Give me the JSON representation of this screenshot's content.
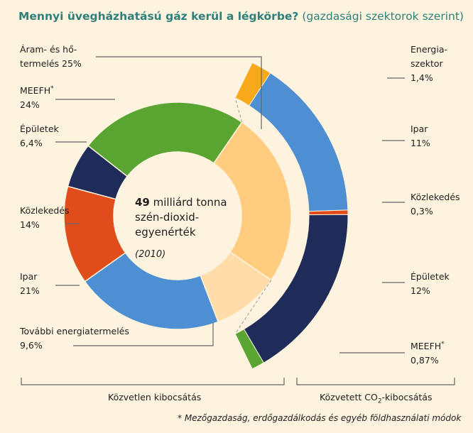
{
  "title": {
    "main": "Mennyi üvegházhatású gáz kerül a légkörbe?",
    "sub": "(gazdasági szektorok szerint)"
  },
  "center": {
    "amount": "49",
    "line1_rest": "milliárd tonna",
    "line2": "szén-dioxid-",
    "line3": "egyenérték",
    "year": "(2010)"
  },
  "left_labels": [
    {
      "line1": "Áram- és hő-",
      "line2": "termelés 25%"
    },
    {
      "line1": "MEEFH",
      "sup": "*",
      "line2": "24%"
    },
    {
      "line1": "Épületek",
      "line2": "6,4%"
    },
    {
      "line1": "Közlekedés",
      "line2": "14%"
    },
    {
      "line1": "Ipar",
      "line2": "21%"
    },
    {
      "line1": "További energiatermelés",
      "line2": "9,6%"
    }
  ],
  "right_labels": [
    {
      "line1": "Energia-",
      "line1b": "szektor",
      "line2": "1,4%"
    },
    {
      "line1": "Ipar",
      "line2": "11%"
    },
    {
      "line1": "Közlekedés",
      "line2": "0,3%"
    },
    {
      "line1": "Épületek",
      "line2": "12%"
    },
    {
      "line1": "MEEFH",
      "sup": "*",
      "line2": "0,87%"
    }
  ],
  "sections": {
    "direct": "Közvetlen kibocsátás",
    "indirect_pre": "Közvetett CO",
    "indirect_sub": "2",
    "indirect_post": "-kibocsátás"
  },
  "footnote": "* Mezőgazdaság, erdőgazdálkodás és egyéb földhasználati módok",
  "colors": {
    "background": "#fdf3de",
    "title": "#2f7f7a",
    "power": "#ffcc80",
    "meefh": "#5aa532",
    "buildings": "#1f2c59",
    "transport": "#e04d1a",
    "industry": "#4e8fd3",
    "other_energy": "#ffdca8",
    "energy_sector": "#f7a81b"
  },
  "chart_data": {
    "type": "pie",
    "title": "Mennyi üvegházhatású gáz kerül a légkörbe? (gazdasági szektorok szerint)",
    "total_label": "49 milliárd tonna szén-dioxid-egyenérték (2010)",
    "direct_emissions": {
      "label": "Közvetlen kibocsátás",
      "slices": [
        {
          "name": "Áram- és hőtermelés",
          "value": 25,
          "color": "#ffcc80"
        },
        {
          "name": "MEEFH",
          "value": 24,
          "color": "#5aa532"
        },
        {
          "name": "Épületek",
          "value": 6.4,
          "color": "#1f2c59"
        },
        {
          "name": "Közlekedés",
          "value": 14,
          "color": "#e04d1a"
        },
        {
          "name": "Ipar",
          "value": 21,
          "color": "#4e8fd3"
        },
        {
          "name": "További energiatermelés",
          "value": 9.6,
          "color": "#ffdca8"
        }
      ]
    },
    "indirect_emissions": {
      "label": "Közvetett CO2-kibocsátás",
      "slices": [
        {
          "name": "Energiaszektor",
          "value": 1.4,
          "color": "#f7a81b"
        },
        {
          "name": "Ipar",
          "value": 11,
          "color": "#4e8fd3"
        },
        {
          "name": "Közlekedés",
          "value": 0.3,
          "color": "#e04d1a"
        },
        {
          "name": "Épületek",
          "value": 12,
          "color": "#1f2c59"
        },
        {
          "name": "MEEFH",
          "value": 0.87,
          "color": "#5aa532"
        }
      ]
    },
    "units": "%"
  }
}
